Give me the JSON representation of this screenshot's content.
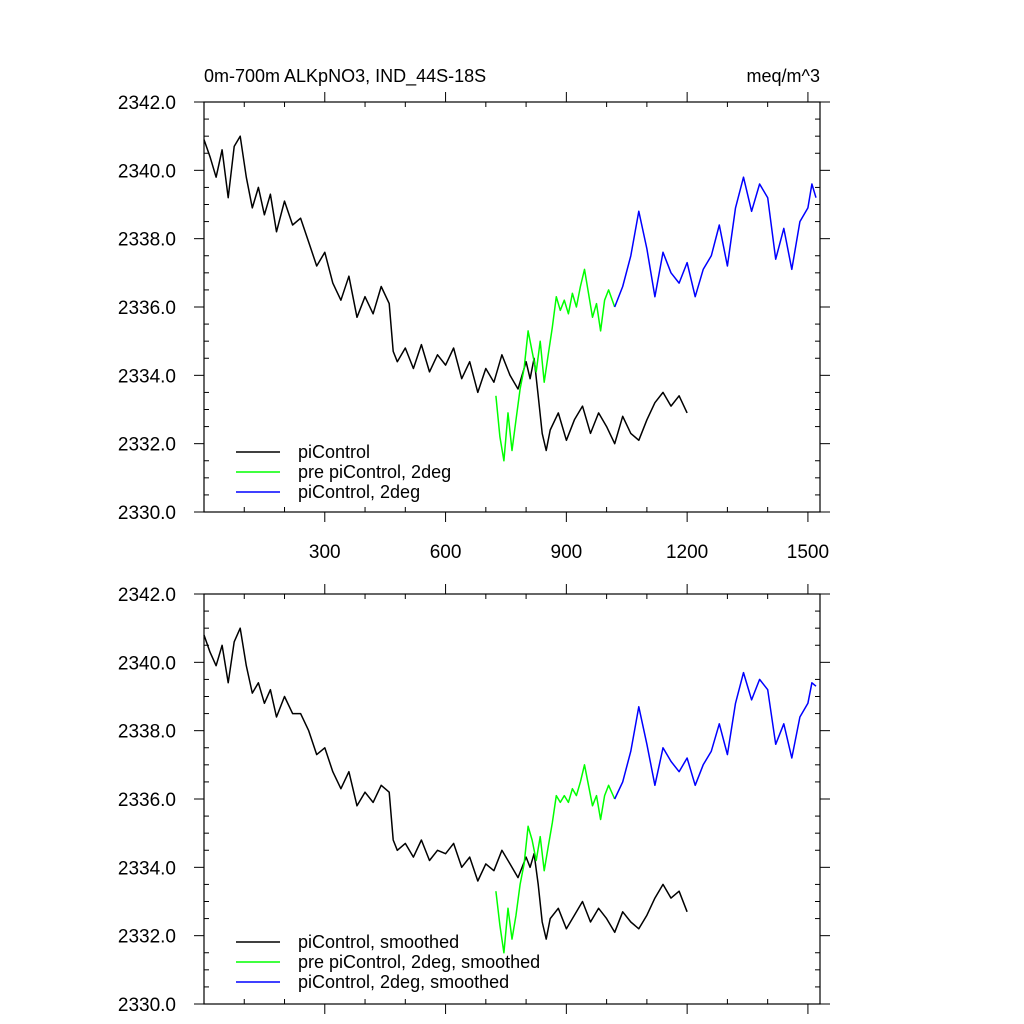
{
  "chart_data": [
    {
      "type": "line",
      "title": "0m-700m ALKpNO3, IND_44S-18S",
      "units": "meq/m^3",
      "xlim": [
        0,
        1530
      ],
      "ylim": [
        2330.0,
        2342.0
      ],
      "x_ticks": [
        300,
        600,
        900,
        1200,
        1500
      ],
      "x_tick_labels": [
        "300",
        "600",
        "900",
        "1200",
        "1500"
      ],
      "y_ticks": [
        2330.0,
        2332.0,
        2334.0,
        2336.0,
        2338.0,
        2340.0,
        2342.0
      ],
      "y_tick_labels": [
        "2330.0",
        "2332.0",
        "2334.0",
        "2336.0",
        "2338.0",
        "2340.0",
        "2342.0"
      ],
      "legend_position": "bottom-left",
      "series": [
        {
          "name": "piControl",
          "color": "#000000",
          "x": [
            0,
            15,
            30,
            45,
            60,
            75,
            90,
            105,
            120,
            135,
            150,
            165,
            180,
            200,
            220,
            240,
            260,
            280,
            300,
            320,
            340,
            360,
            380,
            400,
            420,
            440,
            460,
            470,
            480,
            500,
            520,
            540,
            560,
            580,
            600,
            620,
            640,
            660,
            680,
            700,
            720,
            740,
            760,
            780,
            800,
            810,
            820,
            830,
            840,
            850,
            860,
            880,
            900,
            920,
            940,
            960,
            980,
            1000,
            1020,
            1040,
            1060,
            1080,
            1100,
            1120,
            1140,
            1160,
            1180,
            1200
          ],
          "values": [
            2340.9,
            2340.4,
            2339.8,
            2340.6,
            2339.2,
            2340.7,
            2341.0,
            2339.8,
            2338.9,
            2339.5,
            2338.7,
            2339.3,
            2338.2,
            2339.1,
            2338.4,
            2338.6,
            2337.9,
            2337.2,
            2337.6,
            2336.7,
            2336.2,
            2336.9,
            2335.7,
            2336.3,
            2335.8,
            2336.6,
            2336.1,
            2334.7,
            2334.4,
            2334.8,
            2334.2,
            2334.9,
            2334.1,
            2334.6,
            2334.3,
            2334.8,
            2333.9,
            2334.4,
            2333.5,
            2334.2,
            2333.8,
            2334.6,
            2334.0,
            2333.6,
            2334.4,
            2333.9,
            2334.5,
            2333.4,
            2332.3,
            2331.8,
            2332.4,
            2332.9,
            2332.1,
            2332.7,
            2333.1,
            2332.3,
            2332.9,
            2332.5,
            2332.0,
            2332.8,
            2332.3,
            2332.1,
            2332.7,
            2333.2,
            2333.5,
            2333.1,
            2333.4,
            2332.9
          ]
        },
        {
          "name": "pre piControl, 2deg",
          "color": "#00ff00",
          "x": [
            725,
            735,
            745,
            755,
            765,
            775,
            785,
            795,
            805,
            815,
            825,
            835,
            845,
            855,
            865,
            875,
            885,
            895,
            905,
            915,
            925,
            935,
            945,
            955,
            965,
            975,
            985,
            995,
            1005,
            1020
          ],
          "values": [
            2333.4,
            2332.2,
            2331.5,
            2332.9,
            2331.8,
            2332.7,
            2333.6,
            2334.2,
            2335.3,
            2334.7,
            2334.1,
            2335.0,
            2333.8,
            2334.6,
            2335.4,
            2336.3,
            2335.9,
            2336.2,
            2335.8,
            2336.4,
            2336.0,
            2336.6,
            2337.1,
            2336.4,
            2335.7,
            2336.1,
            2335.3,
            2336.2,
            2336.5,
            2336.0
          ]
        },
        {
          "name": "piControl, 2deg",
          "color": "#0000ff",
          "x": [
            1020,
            1040,
            1060,
            1080,
            1100,
            1120,
            1140,
            1160,
            1180,
            1200,
            1220,
            1240,
            1260,
            1280,
            1300,
            1320,
            1340,
            1360,
            1380,
            1400,
            1420,
            1440,
            1460,
            1480,
            1500,
            1510,
            1520
          ],
          "values": [
            2336.0,
            2336.6,
            2337.5,
            2338.8,
            2337.7,
            2336.3,
            2337.6,
            2337.0,
            2336.7,
            2337.3,
            2336.3,
            2337.1,
            2337.5,
            2338.4,
            2337.2,
            2338.9,
            2339.8,
            2338.8,
            2339.6,
            2339.2,
            2337.4,
            2338.3,
            2337.1,
            2338.5,
            2338.9,
            2339.6,
            2339.2
          ]
        }
      ]
    },
    {
      "type": "line",
      "title": "",
      "xlim": [
        0,
        1530
      ],
      "ylim": [
        2330.0,
        2342.0
      ],
      "x_ticks": [
        300,
        600,
        900,
        1200,
        1500
      ],
      "y_ticks": [
        2330.0,
        2332.0,
        2334.0,
        2336.0,
        2338.0,
        2340.0,
        2342.0
      ],
      "y_tick_labels": [
        "2330.0",
        "2332.0",
        "2334.0",
        "2336.0",
        "2338.0",
        "2340.0",
        "2342.0"
      ],
      "legend_position": "bottom-left",
      "series": [
        {
          "name": "piControl, smoothed",
          "color": "#000000",
          "x": [
            0,
            15,
            30,
            45,
            60,
            75,
            90,
            105,
            120,
            135,
            150,
            165,
            180,
            200,
            220,
            240,
            260,
            280,
            300,
            320,
            340,
            360,
            380,
            400,
            420,
            440,
            460,
            470,
            480,
            500,
            520,
            540,
            560,
            580,
            600,
            620,
            640,
            660,
            680,
            700,
            720,
            740,
            760,
            780,
            800,
            810,
            820,
            830,
            840,
            850,
            860,
            880,
            900,
            920,
            940,
            960,
            980,
            1000,
            1020,
            1040,
            1060,
            1080,
            1100,
            1120,
            1140,
            1160,
            1180,
            1200
          ],
          "values": [
            2340.8,
            2340.3,
            2339.9,
            2340.5,
            2339.4,
            2340.6,
            2341.0,
            2339.9,
            2339.1,
            2339.4,
            2338.8,
            2339.2,
            2338.4,
            2339.0,
            2338.5,
            2338.5,
            2338.0,
            2337.3,
            2337.5,
            2336.8,
            2336.3,
            2336.8,
            2335.8,
            2336.2,
            2335.9,
            2336.4,
            2336.2,
            2334.8,
            2334.5,
            2334.7,
            2334.3,
            2334.8,
            2334.2,
            2334.5,
            2334.4,
            2334.7,
            2334.0,
            2334.3,
            2333.6,
            2334.1,
            2333.9,
            2334.5,
            2334.1,
            2333.7,
            2334.3,
            2334.0,
            2334.4,
            2333.5,
            2332.4,
            2331.9,
            2332.5,
            2332.8,
            2332.2,
            2332.6,
            2333.0,
            2332.4,
            2332.8,
            2332.5,
            2332.1,
            2332.7,
            2332.4,
            2332.2,
            2332.6,
            2333.1,
            2333.5,
            2333.1,
            2333.3,
            2332.7
          ]
        },
        {
          "name": "pre piControl, 2deg, smoothed",
          "color": "#00ff00",
          "x": [
            725,
            735,
            745,
            755,
            765,
            775,
            785,
            795,
            805,
            815,
            825,
            835,
            845,
            855,
            865,
            875,
            885,
            895,
            905,
            915,
            925,
            935,
            945,
            955,
            965,
            975,
            985,
            995,
            1005,
            1020
          ],
          "values": [
            2333.3,
            2332.3,
            2331.5,
            2332.8,
            2331.9,
            2332.6,
            2333.5,
            2334.1,
            2335.2,
            2334.8,
            2334.2,
            2334.9,
            2333.9,
            2334.6,
            2335.3,
            2336.1,
            2335.9,
            2336.1,
            2335.9,
            2336.3,
            2336.1,
            2336.5,
            2337.0,
            2336.4,
            2335.8,
            2336.1,
            2335.4,
            2336.1,
            2336.4,
            2336.0
          ]
        },
        {
          "name": "piControl, 2deg, smoothed",
          "color": "#0000ff",
          "x": [
            1020,
            1040,
            1060,
            1080,
            1100,
            1120,
            1140,
            1160,
            1180,
            1200,
            1220,
            1240,
            1260,
            1280,
            1300,
            1320,
            1340,
            1360,
            1380,
            1400,
            1420,
            1440,
            1460,
            1480,
            1500,
            1510,
            1520
          ],
          "values": [
            2336.0,
            2336.5,
            2337.4,
            2338.7,
            2337.6,
            2336.4,
            2337.5,
            2337.1,
            2336.8,
            2337.2,
            2336.4,
            2337.0,
            2337.4,
            2338.2,
            2337.3,
            2338.8,
            2339.7,
            2338.9,
            2339.5,
            2339.2,
            2337.6,
            2338.2,
            2337.2,
            2338.4,
            2338.8,
            2339.4,
            2339.3
          ]
        }
      ]
    }
  ]
}
